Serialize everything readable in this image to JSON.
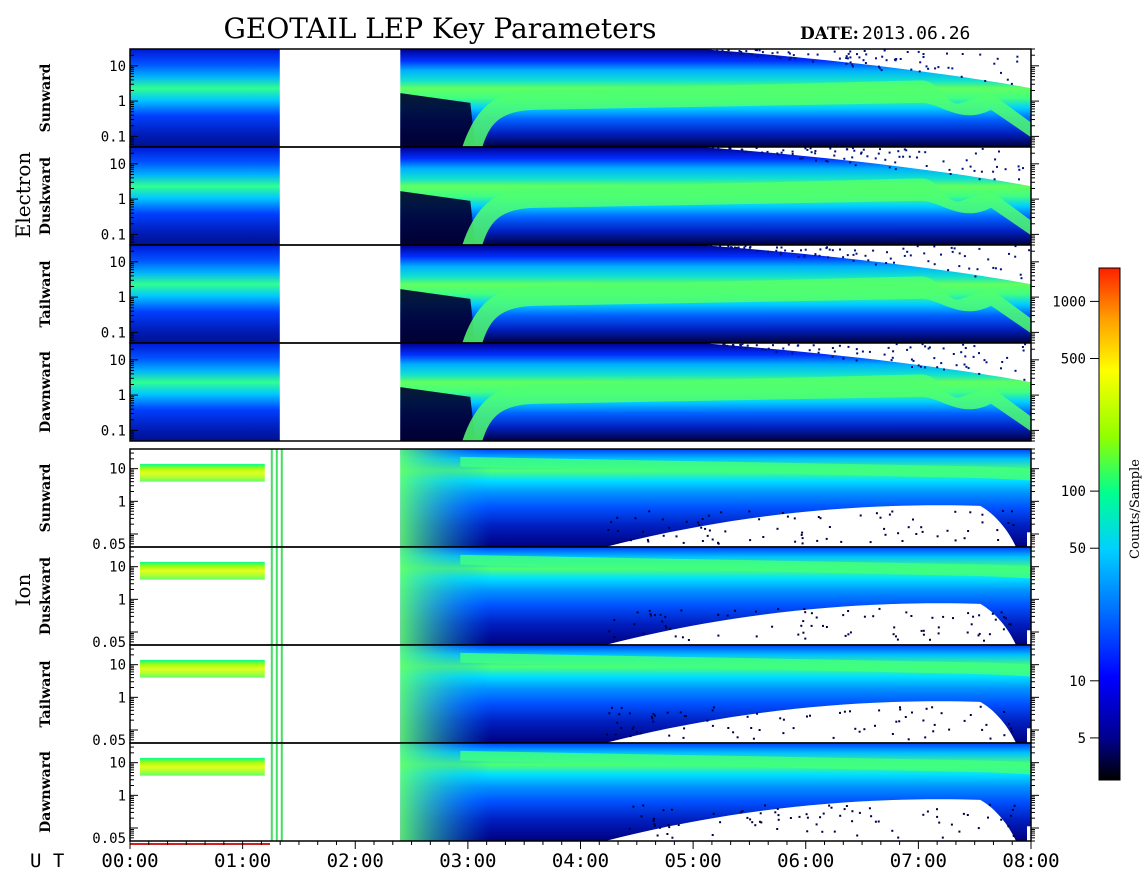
{
  "header": {
    "title": "GEOTAIL LEP Key Parameters",
    "date_label": "DATE:",
    "date_value": "2013.06.26"
  },
  "groups": [
    {
      "name": "Electron"
    },
    {
      "name": "Ion"
    }
  ],
  "colorbar": {
    "label": "Counts/Sample",
    "ticks": [
      "5",
      "10",
      "50",
      "100",
      "500",
      "1000"
    ],
    "tick_values": [
      5,
      10,
      50,
      100,
      500,
      1000
    ],
    "range": [
      3,
      1500
    ],
    "scale": "log",
    "colors": [
      "#000000",
      "#00008b",
      "#0000ff",
      "#0070ff",
      "#00d0ff",
      "#00ff90",
      "#90ff00",
      "#ffff00",
      "#ffa000",
      "#ff2000"
    ]
  },
  "x_axis": {
    "label": "U T",
    "ticks": [
      "00:00",
      "01:00",
      "02:00",
      "03:00",
      "04:00",
      "05:00",
      "06:00",
      "07:00",
      "08:00"
    ],
    "range_hours": [
      0,
      8
    ]
  },
  "chart_data": {
    "type": "heatmap",
    "title": "GEOTAIL LEP Key Parameters",
    "x_range_hours": [
      0,
      8
    ],
    "data_gaps_hours": [
      [
        1.33,
        2.4
      ]
    ],
    "panels": [
      {
        "group": "Electron",
        "name": "Sunward",
        "yticks": [
          "10",
          "1",
          "0.1"
        ],
        "ytick_values": [
          10,
          1,
          0.1
        ],
        "ylim": [
          0.05,
          30
        ],
        "yscale": "log"
      },
      {
        "group": "Electron",
        "name": "Duskward",
        "yticks": [
          "10",
          "1",
          "0.1"
        ],
        "ytick_values": [
          10,
          1,
          0.1
        ],
        "ylim": [
          0.05,
          30
        ],
        "yscale": "log"
      },
      {
        "group": "Electron",
        "name": "Tailward",
        "yticks": [
          "10",
          "1",
          "0.1"
        ],
        "ytick_values": [
          10,
          1,
          0.1
        ],
        "ylim": [
          0.05,
          30
        ],
        "yscale": "log"
      },
      {
        "group": "Electron",
        "name": "Dawnward",
        "yticks": [
          "10",
          "1",
          "0.1"
        ],
        "ytick_values": [
          10,
          1,
          0.1
        ],
        "ylim": [
          0.05,
          30
        ],
        "yscale": "log"
      },
      {
        "group": "Ion",
        "name": "Sunward",
        "yticks": [
          "10",
          "1",
          "0.05"
        ],
        "ytick_values": [
          10,
          1,
          0.05
        ],
        "ylim": [
          0.04,
          40
        ],
        "yscale": "log"
      },
      {
        "group": "Ion",
        "name": "Duskward",
        "yticks": [
          "10",
          "1",
          "0.05"
        ],
        "ytick_values": [
          10,
          1,
          0.05
        ],
        "ylim": [
          0.04,
          40
        ],
        "yscale": "log"
      },
      {
        "group": "Ion",
        "name": "Tailward",
        "yticks": [
          "10",
          "1",
          "0.05"
        ],
        "ytick_values": [
          10,
          1,
          0.05
        ],
        "ylim": [
          0.04,
          40
        ],
        "yscale": "log"
      },
      {
        "group": "Ion",
        "name": "Dawnward",
        "yticks": [
          "10",
          "1",
          "0.05"
        ],
        "ytick_values": [
          10,
          1,
          0.05
        ],
        "ylim": [
          0.04,
          40
        ],
        "yscale": "log"
      }
    ]
  }
}
